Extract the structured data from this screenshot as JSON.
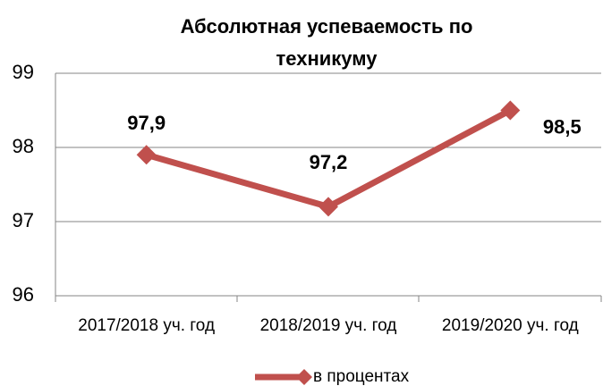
{
  "chart_data": {
    "type": "line",
    "title": "Абсолютная успеваемость по техникуму",
    "categories": [
      "2017/2018 уч. год",
      "2018/2019 уч. год",
      "2019/2020 уч. год"
    ],
    "series": [
      {
        "name": "в процентах",
        "color": "#c0504d",
        "values": [
          97.9,
          97.2,
          98.5
        ],
        "value_labels": [
          "97,9",
          "97,2",
          "98,5"
        ]
      }
    ],
    "ylim": [
      96,
      99
    ],
    "yticks": [
      96,
      97,
      98,
      99
    ],
    "grid": true,
    "legend": "bottom"
  }
}
